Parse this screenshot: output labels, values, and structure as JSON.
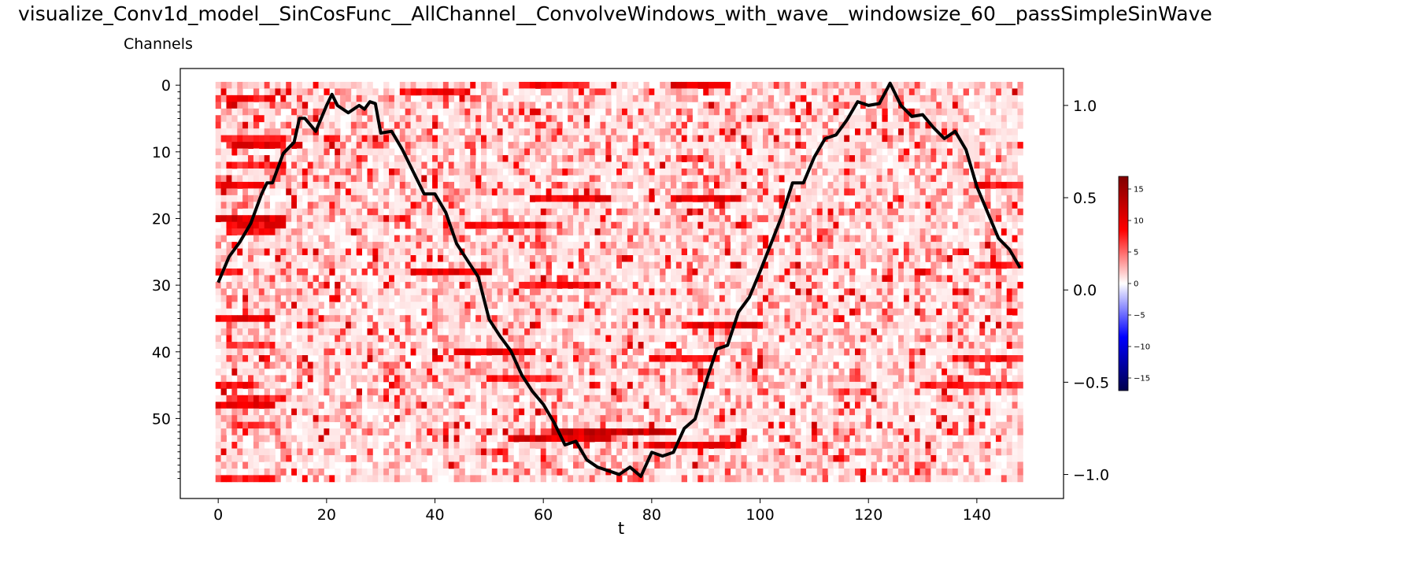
{
  "page": {
    "title": "visualize_Conv1d_model__SinCosFunc__AllChannel__ConvolveWindows_with_wave__windowsize_60__passSimpleSinWave",
    "subtitle": "Channels"
  },
  "chart_data": {
    "type": "heatmap",
    "xlabel": "t",
    "ylabel": "",
    "x_range": [
      0,
      148
    ],
    "xlim": [
      -7,
      156
    ],
    "x_ticks": [
      0,
      20,
      40,
      60,
      80,
      100,
      120,
      140
    ],
    "x_tick_labels": [
      "0",
      "20",
      "40",
      "60",
      "80",
      "100",
      "120",
      "140"
    ],
    "channels": 60,
    "ylim": [
      -2.5,
      62
    ],
    "y_ticks": [
      0,
      10,
      20,
      30,
      40,
      50
    ],
    "y_tick_labels": [
      "0",
      "10",
      "20",
      "30",
      "40",
      "50"
    ],
    "heatmap": {
      "colormap": "seismic",
      "vmin": -17,
      "vmax": 17,
      "note_on_values": "all visible cell values are positive (white to red), mostly between 0 and 12",
      "strong_rows": [
        {
          "channel": 2,
          "t_range": [
            2,
            10
          ],
          "value": 9
        },
        {
          "channel": 8,
          "t_range": [
            1,
            12
          ],
          "value": 8
        },
        {
          "channel": 9,
          "t_range": [
            3,
            12
          ],
          "value": 10
        },
        {
          "channel": 12,
          "t_range": [
            2,
            12
          ],
          "value": 8
        },
        {
          "channel": 15,
          "t_range": [
            0,
            8
          ],
          "value": 9
        },
        {
          "channel": 20,
          "t_range": [
            0,
            12
          ],
          "value": 11
        },
        {
          "channel": 21,
          "t_range": [
            2,
            12
          ],
          "value": 10
        },
        {
          "channel": 22,
          "t_range": [
            2,
            10
          ],
          "value": 9
        },
        {
          "channel": 28,
          "t_range": [
            0,
            4
          ],
          "value": 8
        },
        {
          "channel": 35,
          "t_range": [
            0,
            10
          ],
          "value": 10
        },
        {
          "channel": 39,
          "t_range": [
            2,
            10
          ],
          "value": 7
        },
        {
          "channel": 45,
          "t_range": [
            0,
            6
          ],
          "value": 9
        },
        {
          "channel": 47,
          "t_range": [
            2,
            12
          ],
          "value": 8
        },
        {
          "channel": 48,
          "t_range": [
            0,
            10
          ],
          "value": 10
        },
        {
          "channel": 51,
          "t_range": [
            3,
            10
          ],
          "value": 7
        },
        {
          "channel": 59,
          "t_range": [
            0,
            10
          ],
          "value": 8
        },
        {
          "channel": 17,
          "t_range": [
            58,
            72
          ],
          "value": 10
        },
        {
          "channel": 17,
          "t_range": [
            84,
            96
          ],
          "value": 10
        },
        {
          "channel": 21,
          "t_range": [
            46,
            60
          ],
          "value": 9
        },
        {
          "channel": 28,
          "t_range": [
            36,
            50
          ],
          "value": 10
        },
        {
          "channel": 30,
          "t_range": [
            56,
            68
          ],
          "value": 9
        },
        {
          "channel": 36,
          "t_range": [
            86,
            100
          ],
          "value": 10
        },
        {
          "channel": 40,
          "t_range": [
            44,
            58
          ],
          "value": 10
        },
        {
          "channel": 41,
          "t_range": [
            80,
            92
          ],
          "value": 9
        },
        {
          "channel": 44,
          "t_range": [
            50,
            62
          ],
          "value": 8
        },
        {
          "channel": 52,
          "t_range": [
            62,
            84
          ],
          "value": 12
        },
        {
          "channel": 53,
          "t_range": [
            54,
            72
          ],
          "value": 11
        },
        {
          "channel": 54,
          "t_range": [
            80,
            96
          ],
          "value": 10
        },
        {
          "channel": 0,
          "t_range": [
            56,
            68
          ],
          "value": 9
        },
        {
          "channel": 0,
          "t_range": [
            84,
            94
          ],
          "value": 10
        },
        {
          "channel": 1,
          "t_range": [
            34,
            46
          ],
          "value": 9
        },
        {
          "channel": 15,
          "t_range": [
            140,
            148
          ],
          "value": 9
        },
        {
          "channel": 27,
          "t_range": [
            140,
            148
          ],
          "value": 8
        },
        {
          "channel": 41,
          "t_range": [
            136,
            148
          ],
          "value": 8
        },
        {
          "channel": 45,
          "t_range": [
            130,
            148
          ],
          "value": 8
        }
      ]
    },
    "wave": {
      "name": "",
      "color": "#000000",
      "ylim": [
        -1.13,
        1.2
      ],
      "y_ticks": [
        -1.0,
        -0.5,
        0.0,
        0.5,
        1.0
      ],
      "y_tick_labels": [
        "−1.0",
        "−0.5",
        "0.0",
        "0.5",
        "1.0"
      ],
      "x": [
        0,
        2,
        4,
        6,
        8,
        9,
        10,
        12,
        14,
        15,
        16,
        18,
        20,
        21,
        22,
        24,
        26,
        27,
        28,
        29,
        30,
        32,
        34,
        36,
        38,
        40,
        42,
        44,
        46,
        48,
        50,
        52,
        54,
        56,
        58,
        60,
        62,
        64,
        66,
        68,
        70,
        72,
        74,
        76,
        78,
        80,
        82,
        84,
        86,
        88,
        90,
        92,
        94,
        96,
        98,
        100,
        102,
        104,
        106,
        108,
        110,
        112,
        114,
        116,
        118,
        120,
        122,
        124,
        126,
        128,
        130,
        132,
        134,
        136,
        138,
        140,
        142,
        144,
        146,
        148
      ],
      "y": [
        0.04,
        0.18,
        0.26,
        0.36,
        0.52,
        0.58,
        0.58,
        0.74,
        0.8,
        0.93,
        0.93,
        0.86,
        1.0,
        1.06,
        1.0,
        0.96,
        1.0,
        0.98,
        1.02,
        1.01,
        0.85,
        0.86,
        0.76,
        0.64,
        0.52,
        0.52,
        0.42,
        0.25,
        0.16,
        0.07,
        -0.16,
        -0.25,
        -0.33,
        -0.46,
        -0.55,
        -0.62,
        -0.72,
        -0.84,
        -0.82,
        -0.92,
        -0.96,
        -0.98,
        -1.0,
        -0.96,
        -1.01,
        -0.88,
        -0.9,
        -0.88,
        -0.75,
        -0.7,
        -0.5,
        -0.32,
        -0.3,
        -0.12,
        -0.04,
        0.1,
        0.25,
        0.4,
        0.58,
        0.58,
        0.72,
        0.82,
        0.84,
        0.92,
        1.02,
        1.0,
        1.01,
        1.12,
        1.0,
        0.94,
        0.95,
        0.88,
        0.82,
        0.86,
        0.76,
        0.56,
        0.42,
        0.28,
        0.22,
        0.12
      ]
    },
    "colorbar": {
      "ticks": [
        15,
        10,
        5,
        0,
        -5,
        -10,
        -15
      ],
      "tick_labels": [
        "15",
        "10",
        "5",
        "0",
        "−5",
        "−10",
        "−15"
      ]
    }
  }
}
